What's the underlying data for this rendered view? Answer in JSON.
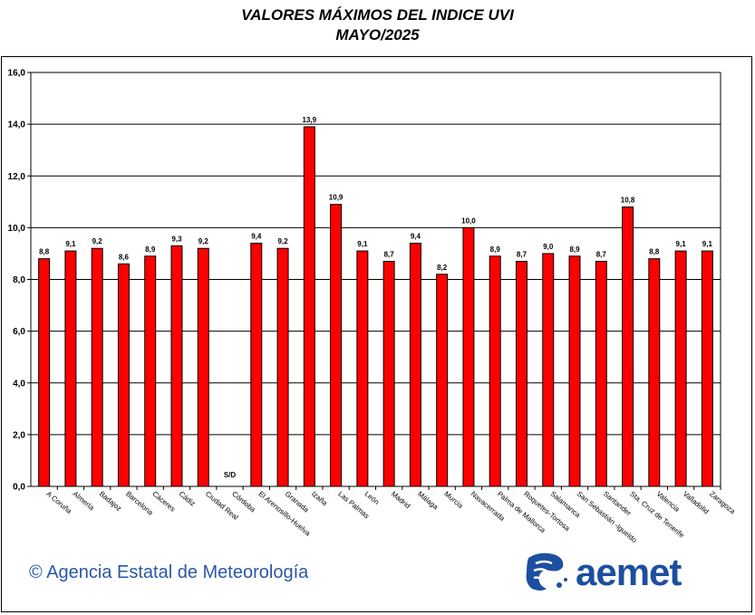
{
  "title": "VALORES MÁXIMOS DEL INDICE  UVI",
  "subtitle": "MAYO/2025",
  "footer": "© Agencia Estatal de Meteorología",
  "logo_text": "aemet",
  "colors": {
    "bar": "#ff0000",
    "bar_border": "#000000",
    "grid": "#000000",
    "logo": "#1d4fa0",
    "footer": "#2a57a5"
  },
  "chart_data": {
    "type": "bar",
    "title": "VALORES MÁXIMOS DEL INDICE  UVI",
    "subtitle": "MAYO/2025",
    "xlabel": "",
    "ylabel": "",
    "ylim": [
      0,
      16
    ],
    "yticks": [
      "0,0",
      "2,0",
      "4,0",
      "6,0",
      "8,0",
      "10,0",
      "12,0",
      "14,0",
      "16,0"
    ],
    "grid": true,
    "legend": "none",
    "categories": [
      "A Coruña",
      "Almería",
      "Badajoz",
      "Barcelona",
      "Cáceres",
      "Cádiz",
      "Ciudad Real",
      "Córdoba",
      "El Arenosillo-Huelva",
      "Granada",
      "Izaña",
      "Las Palmas",
      "León",
      "Madrid",
      "Málaga",
      "Murcia",
      "Navacerrada",
      "Palma de Mallorca",
      "Roquetes-Tortosa",
      "Salamanca",
      "San Sebastián -Igueldo",
      "Santander",
      "Sta. Cruz de Tenerife",
      "Valencia",
      "Valladolid",
      "Zaragoza"
    ],
    "values": [
      8.8,
      9.1,
      9.2,
      8.6,
      8.9,
      9.3,
      9.2,
      null,
      9.4,
      9.2,
      13.9,
      10.9,
      9.1,
      8.7,
      9.4,
      8.2,
      10.0,
      8.9,
      8.7,
      9.0,
      8.9,
      8.7,
      10.8,
      8.8,
      9.1,
      9.1
    ],
    "labels": [
      "8,8",
      "9,1",
      "9,2",
      "8,6",
      "8,9",
      "9,3",
      "9,2",
      "S/D",
      "9,4",
      "9,2",
      "13,9",
      "10,9",
      "9,1",
      "8,7",
      "9,4",
      "8,2",
      "10,0",
      "8,9",
      "8,7",
      "9,0",
      "8,9",
      "8,7",
      "10,8",
      "8,8",
      "9,1",
      "9,1"
    ]
  }
}
